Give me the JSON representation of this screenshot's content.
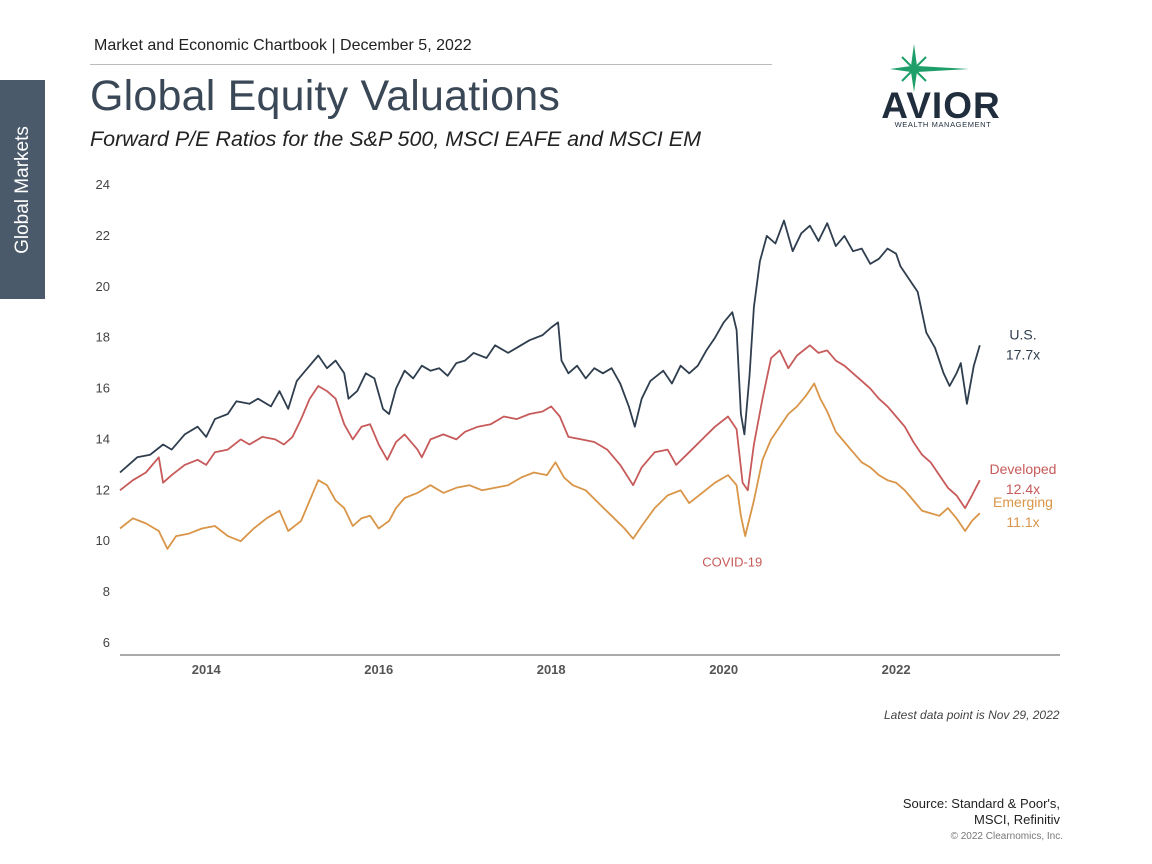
{
  "side_tab": "Global Markets",
  "header": "Market and Economic Chartbook | December 5, 2022",
  "title": "Global Equity Valuations",
  "subtitle": "Forward P/E Ratios for the S&P 500, MSCI EAFE and MSCI EM",
  "logo": {
    "name": "AVIOR",
    "tagline": "WEALTH MANAGEMENT",
    "star_color": "#1e9e68",
    "text_color": "#1f2d3d"
  },
  "latest_note": "Latest data point is Nov 29, 2022",
  "source_lines": [
    "Source: Standard & Poor's,",
    "MSCI, Refinitiv"
  ],
  "copyright": "© 2022 Clearnomics, Inc.",
  "chart_data": {
    "type": "line",
    "title": "",
    "xlabel": "",
    "ylabel": "",
    "xlim": [
      2013.0,
      2023.9
    ],
    "ylim": [
      6,
      24
    ],
    "yticks": [
      6,
      8,
      10,
      12,
      14,
      16,
      18,
      20,
      22,
      24
    ],
    "xticks": [
      2014,
      2016,
      2018,
      2020,
      2022
    ],
    "grid": false,
    "series": [
      {
        "key": "us",
        "color": "#2f3e4e",
        "label_lines": [
          "U.S.",
          "17.7x"
        ],
        "points": [
          [
            2013.0,
            12.7
          ],
          [
            2013.1,
            13.0
          ],
          [
            2013.2,
            13.3
          ],
          [
            2013.35,
            13.4
          ],
          [
            2013.5,
            13.8
          ],
          [
            2013.6,
            13.6
          ],
          [
            2013.75,
            14.2
          ],
          [
            2013.9,
            14.5
          ],
          [
            2014.0,
            14.1
          ],
          [
            2014.1,
            14.8
          ],
          [
            2014.25,
            15.0
          ],
          [
            2014.35,
            15.5
          ],
          [
            2014.5,
            15.4
          ],
          [
            2014.6,
            15.6
          ],
          [
            2014.75,
            15.3
          ],
          [
            2014.85,
            15.9
          ],
          [
            2014.95,
            15.2
          ],
          [
            2015.05,
            16.3
          ],
          [
            2015.15,
            16.7
          ],
          [
            2015.3,
            17.3
          ],
          [
            2015.4,
            16.8
          ],
          [
            2015.5,
            17.1
          ],
          [
            2015.6,
            16.6
          ],
          [
            2015.65,
            15.6
          ],
          [
            2015.75,
            15.9
          ],
          [
            2015.85,
            16.6
          ],
          [
            2015.95,
            16.4
          ],
          [
            2016.05,
            15.2
          ],
          [
            2016.12,
            15.0
          ],
          [
            2016.2,
            16.0
          ],
          [
            2016.3,
            16.7
          ],
          [
            2016.4,
            16.4
          ],
          [
            2016.5,
            16.9
          ],
          [
            2016.6,
            16.7
          ],
          [
            2016.7,
            16.8
          ],
          [
            2016.8,
            16.5
          ],
          [
            2016.9,
            17.0
          ],
          [
            2017.0,
            17.1
          ],
          [
            2017.1,
            17.4
          ],
          [
            2017.25,
            17.2
          ],
          [
            2017.35,
            17.7
          ],
          [
            2017.5,
            17.4
          ],
          [
            2017.6,
            17.6
          ],
          [
            2017.75,
            17.9
          ],
          [
            2017.9,
            18.1
          ],
          [
            2018.0,
            18.4
          ],
          [
            2018.08,
            18.6
          ],
          [
            2018.12,
            17.1
          ],
          [
            2018.2,
            16.6
          ],
          [
            2018.3,
            16.9
          ],
          [
            2018.4,
            16.4
          ],
          [
            2018.5,
            16.8
          ],
          [
            2018.6,
            16.6
          ],
          [
            2018.7,
            16.8
          ],
          [
            2018.8,
            16.2
          ],
          [
            2018.9,
            15.3
          ],
          [
            2018.97,
            14.5
          ],
          [
            2019.05,
            15.6
          ],
          [
            2019.15,
            16.3
          ],
          [
            2019.3,
            16.7
          ],
          [
            2019.4,
            16.2
          ],
          [
            2019.5,
            16.9
          ],
          [
            2019.6,
            16.6
          ],
          [
            2019.7,
            16.9
          ],
          [
            2019.8,
            17.5
          ],
          [
            2019.9,
            18.0
          ],
          [
            2020.0,
            18.6
          ],
          [
            2020.1,
            19.0
          ],
          [
            2020.15,
            18.3
          ],
          [
            2020.2,
            15.0
          ],
          [
            2020.24,
            14.2
          ],
          [
            2020.3,
            16.5
          ],
          [
            2020.35,
            19.2
          ],
          [
            2020.42,
            21.0
          ],
          [
            2020.5,
            22.0
          ],
          [
            2020.6,
            21.7
          ],
          [
            2020.7,
            22.6
          ],
          [
            2020.8,
            21.4
          ],
          [
            2020.9,
            22.1
          ],
          [
            2021.0,
            22.4
          ],
          [
            2021.1,
            21.8
          ],
          [
            2021.2,
            22.5
          ],
          [
            2021.3,
            21.6
          ],
          [
            2021.4,
            22.0
          ],
          [
            2021.5,
            21.4
          ],
          [
            2021.6,
            21.5
          ],
          [
            2021.7,
            20.9
          ],
          [
            2021.8,
            21.1
          ],
          [
            2021.9,
            21.5
          ],
          [
            2022.0,
            21.3
          ],
          [
            2022.05,
            20.8
          ],
          [
            2022.15,
            20.3
          ],
          [
            2022.25,
            19.8
          ],
          [
            2022.35,
            18.2
          ],
          [
            2022.45,
            17.6
          ],
          [
            2022.55,
            16.6
          ],
          [
            2022.62,
            16.1
          ],
          [
            2022.7,
            16.6
          ],
          [
            2022.75,
            17.0
          ],
          [
            2022.82,
            15.4
          ],
          [
            2022.9,
            16.9
          ],
          [
            2022.97,
            17.7
          ]
        ]
      },
      {
        "key": "developed",
        "color": "#c75a5a",
        "label_lines": [
          "Developed",
          "12.4x"
        ],
        "points": [
          [
            2013.0,
            12.0
          ],
          [
            2013.15,
            12.4
          ],
          [
            2013.3,
            12.7
          ],
          [
            2013.45,
            13.3
          ],
          [
            2013.5,
            12.3
          ],
          [
            2013.6,
            12.6
          ],
          [
            2013.75,
            13.0
          ],
          [
            2013.9,
            13.2
          ],
          [
            2014.0,
            13.0
          ],
          [
            2014.1,
            13.5
          ],
          [
            2014.25,
            13.6
          ],
          [
            2014.4,
            14.0
          ],
          [
            2014.5,
            13.8
          ],
          [
            2014.65,
            14.1
          ],
          [
            2014.8,
            14.0
          ],
          [
            2014.9,
            13.8
          ],
          [
            2015.0,
            14.1
          ],
          [
            2015.1,
            14.8
          ],
          [
            2015.2,
            15.6
          ],
          [
            2015.3,
            16.1
          ],
          [
            2015.4,
            15.9
          ],
          [
            2015.5,
            15.6
          ],
          [
            2015.6,
            14.6
          ],
          [
            2015.7,
            14.0
          ],
          [
            2015.8,
            14.5
          ],
          [
            2015.9,
            14.6
          ],
          [
            2016.0,
            13.8
          ],
          [
            2016.1,
            13.2
          ],
          [
            2016.2,
            13.9
          ],
          [
            2016.3,
            14.2
          ],
          [
            2016.45,
            13.6
          ],
          [
            2016.5,
            13.3
          ],
          [
            2016.6,
            14.0
          ],
          [
            2016.75,
            14.2
          ],
          [
            2016.9,
            14.0
          ],
          [
            2017.0,
            14.3
          ],
          [
            2017.15,
            14.5
          ],
          [
            2017.3,
            14.6
          ],
          [
            2017.45,
            14.9
          ],
          [
            2017.6,
            14.8
          ],
          [
            2017.75,
            15.0
          ],
          [
            2017.9,
            15.1
          ],
          [
            2018.0,
            15.3
          ],
          [
            2018.1,
            14.9
          ],
          [
            2018.2,
            14.1
          ],
          [
            2018.35,
            14.0
          ],
          [
            2018.5,
            13.9
          ],
          [
            2018.65,
            13.6
          ],
          [
            2018.8,
            13.0
          ],
          [
            2018.95,
            12.2
          ],
          [
            2019.05,
            12.9
          ],
          [
            2019.2,
            13.5
          ],
          [
            2019.35,
            13.6
          ],
          [
            2019.45,
            13.0
          ],
          [
            2019.6,
            13.5
          ],
          [
            2019.75,
            14.0
          ],
          [
            2019.9,
            14.5
          ],
          [
            2020.05,
            14.9
          ],
          [
            2020.15,
            14.4
          ],
          [
            2020.22,
            12.3
          ],
          [
            2020.28,
            12.0
          ],
          [
            2020.35,
            13.8
          ],
          [
            2020.45,
            15.6
          ],
          [
            2020.55,
            17.2
          ],
          [
            2020.65,
            17.5
          ],
          [
            2020.75,
            16.8
          ],
          [
            2020.85,
            17.3
          ],
          [
            2021.0,
            17.7
          ],
          [
            2021.1,
            17.4
          ],
          [
            2021.2,
            17.5
          ],
          [
            2021.3,
            17.1
          ],
          [
            2021.4,
            16.9
          ],
          [
            2021.5,
            16.6
          ],
          [
            2021.6,
            16.3
          ],
          [
            2021.7,
            16.0
          ],
          [
            2021.8,
            15.6
          ],
          [
            2021.9,
            15.3
          ],
          [
            2022.0,
            14.9
          ],
          [
            2022.1,
            14.5
          ],
          [
            2022.2,
            13.9
          ],
          [
            2022.3,
            13.4
          ],
          [
            2022.4,
            13.1
          ],
          [
            2022.5,
            12.6
          ],
          [
            2022.6,
            12.1
          ],
          [
            2022.7,
            11.8
          ],
          [
            2022.8,
            11.3
          ],
          [
            2022.88,
            11.8
          ],
          [
            2022.97,
            12.4
          ]
        ]
      },
      {
        "key": "emerging",
        "color": "#d99548",
        "label_lines": [
          "Emerging",
          "11.1x"
        ],
        "points": [
          [
            2013.0,
            10.5
          ],
          [
            2013.15,
            10.9
          ],
          [
            2013.3,
            10.7
          ],
          [
            2013.45,
            10.4
          ],
          [
            2013.55,
            9.7
          ],
          [
            2013.65,
            10.2
          ],
          [
            2013.8,
            10.3
          ],
          [
            2013.95,
            10.5
          ],
          [
            2014.1,
            10.6
          ],
          [
            2014.25,
            10.2
          ],
          [
            2014.4,
            10.0
          ],
          [
            2014.55,
            10.5
          ],
          [
            2014.7,
            10.9
          ],
          [
            2014.85,
            11.2
          ],
          [
            2014.95,
            10.4
          ],
          [
            2015.1,
            10.8
          ],
          [
            2015.2,
            11.6
          ],
          [
            2015.3,
            12.4
          ],
          [
            2015.4,
            12.2
          ],
          [
            2015.5,
            11.6
          ],
          [
            2015.6,
            11.3
          ],
          [
            2015.7,
            10.6
          ],
          [
            2015.8,
            10.9
          ],
          [
            2015.9,
            11.0
          ],
          [
            2016.0,
            10.5
          ],
          [
            2016.12,
            10.8
          ],
          [
            2016.2,
            11.3
          ],
          [
            2016.3,
            11.7
          ],
          [
            2016.45,
            11.9
          ],
          [
            2016.6,
            12.2
          ],
          [
            2016.75,
            11.9
          ],
          [
            2016.9,
            12.1
          ],
          [
            2017.05,
            12.2
          ],
          [
            2017.2,
            12.0
          ],
          [
            2017.35,
            12.1
          ],
          [
            2017.5,
            12.2
          ],
          [
            2017.65,
            12.5
          ],
          [
            2017.8,
            12.7
          ],
          [
            2017.95,
            12.6
          ],
          [
            2018.05,
            13.1
          ],
          [
            2018.15,
            12.5
          ],
          [
            2018.25,
            12.2
          ],
          [
            2018.4,
            12.0
          ],
          [
            2018.55,
            11.5
          ],
          [
            2018.7,
            11.0
          ],
          [
            2018.85,
            10.5
          ],
          [
            2018.95,
            10.1
          ],
          [
            2019.05,
            10.6
          ],
          [
            2019.2,
            11.3
          ],
          [
            2019.35,
            11.8
          ],
          [
            2019.5,
            12.0
          ],
          [
            2019.6,
            11.5
          ],
          [
            2019.75,
            11.9
          ],
          [
            2019.9,
            12.3
          ],
          [
            2020.05,
            12.6
          ],
          [
            2020.15,
            12.2
          ],
          [
            2020.2,
            11.0
          ],
          [
            2020.25,
            10.2
          ],
          [
            2020.35,
            11.6
          ],
          [
            2020.45,
            13.2
          ],
          [
            2020.55,
            14.0
          ],
          [
            2020.65,
            14.5
          ],
          [
            2020.75,
            15.0
          ],
          [
            2020.85,
            15.3
          ],
          [
            2020.95,
            15.7
          ],
          [
            2021.05,
            16.2
          ],
          [
            2021.12,
            15.6
          ],
          [
            2021.2,
            15.1
          ],
          [
            2021.3,
            14.3
          ],
          [
            2021.4,
            13.9
          ],
          [
            2021.5,
            13.5
          ],
          [
            2021.6,
            13.1
          ],
          [
            2021.7,
            12.9
          ],
          [
            2021.8,
            12.6
          ],
          [
            2021.9,
            12.4
          ],
          [
            2022.0,
            12.3
          ],
          [
            2022.1,
            12.0
          ],
          [
            2022.2,
            11.6
          ],
          [
            2022.3,
            11.2
          ],
          [
            2022.4,
            11.1
          ],
          [
            2022.5,
            11.0
          ],
          [
            2022.6,
            11.3
          ],
          [
            2022.7,
            10.9
          ],
          [
            2022.8,
            10.4
          ],
          [
            2022.88,
            10.8
          ],
          [
            2022.97,
            11.1
          ]
        ]
      }
    ],
    "annotation": {
      "text": "COVID-19",
      "x": 2020.1,
      "y": 9.0,
      "color": "#c75a5a"
    }
  }
}
